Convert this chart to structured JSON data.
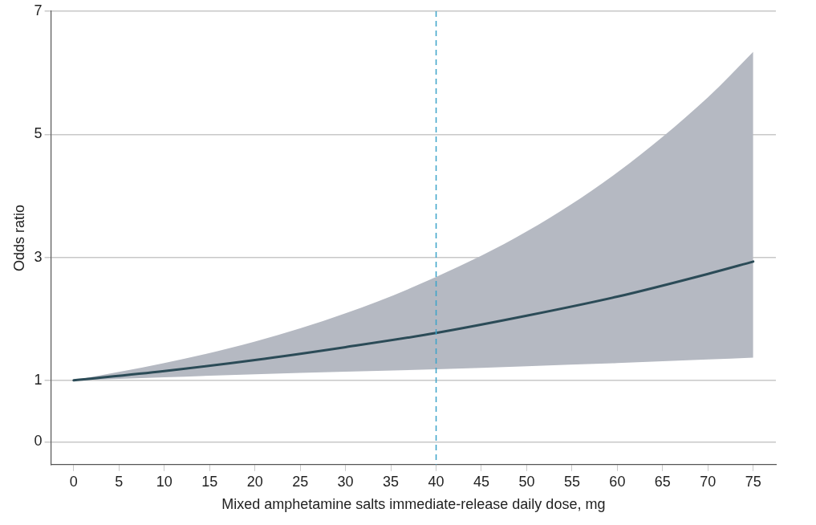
{
  "chart_data": {
    "type": "line",
    "xlabel": "Mixed amphetamine salts immediate-release daily dose, mg",
    "ylabel": "Odds ratio",
    "x": [
      0,
      10,
      20,
      30,
      40,
      50,
      60,
      70,
      75
    ],
    "series": [
      {
        "color": "#2b4b57",
        "values": [
          1,
          1.15,
          1.33,
          1.54,
          1.77,
          2.05,
          2.36,
          2.73,
          2.93
        ],
        "lower": [
          1,
          1.05,
          1.1,
          1.14,
          1.18,
          1.23,
          1.28,
          1.34,
          1.37
        ],
        "upper": [
          1,
          1.28,
          1.63,
          2.09,
          2.68,
          3.42,
          4.38,
          5.6,
          6.34
        ]
      }
    ],
    "xlim": [
      -2.5,
      77.5
    ],
    "xticks": [
      0,
      5,
      10,
      15,
      20,
      25,
      30,
      35,
      40,
      45,
      50,
      55,
      60,
      65,
      70,
      75
    ],
    "ylim": [
      -0.37,
      7
    ],
    "yticks": [
      0,
      1,
      3,
      5,
      7
    ],
    "ref_lines": [
      {
        "axis": "x",
        "value": 40,
        "color": "#3ba3c9",
        "line_style": "dashed"
      }
    ],
    "grid": "y",
    "legend": false,
    "marker": "none",
    "line_style": "solid"
  }
}
